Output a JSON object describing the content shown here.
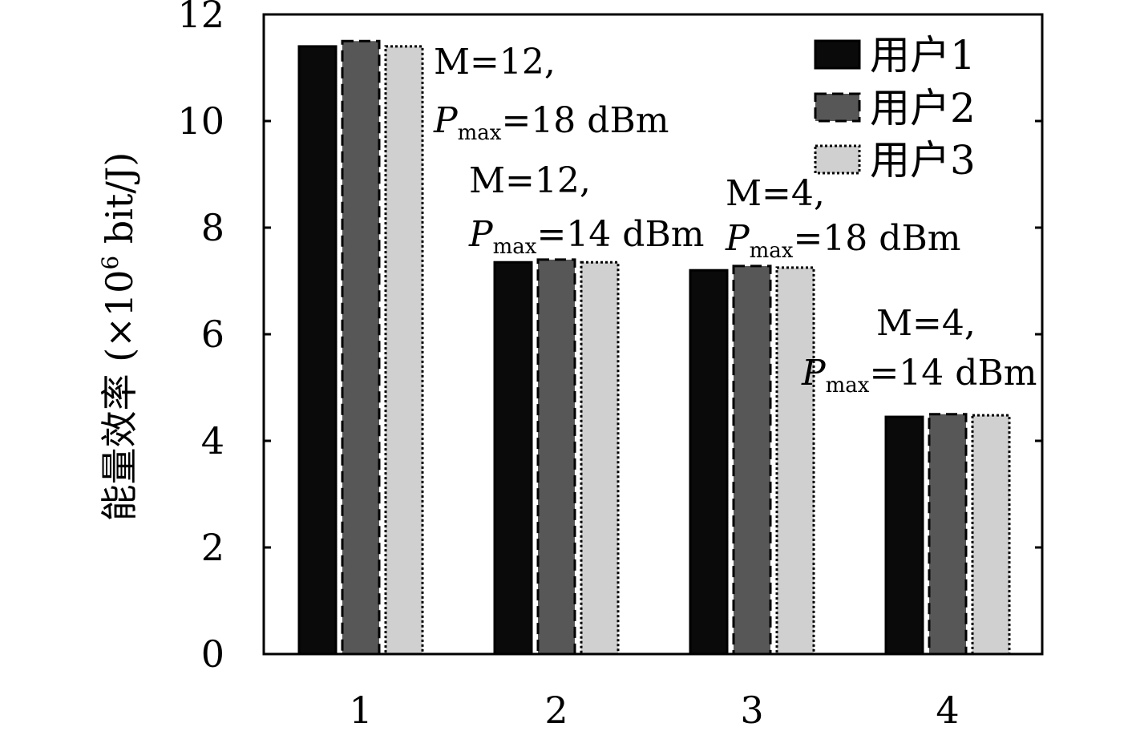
{
  "chart_data": {
    "type": "bar",
    "categories": [
      "1",
      "2",
      "3",
      "4"
    ],
    "series": [
      {
        "name": "用户1",
        "values": [
          11.4,
          7.35,
          7.2,
          4.45
        ],
        "color": "#0a0a0a",
        "border": "solid"
      },
      {
        "name": "用户2",
        "values": [
          11.5,
          7.4,
          7.28,
          4.5
        ],
        "color": "#575757",
        "border": "dashed"
      },
      {
        "name": "用户3",
        "values": [
          11.4,
          7.35,
          7.25,
          4.48
        ],
        "color": "#d0d0d0",
        "border": "dotted"
      }
    ],
    "ylabel": "能量效率 (×10⁶ bit/J)",
    "ylabel_main": "能量效率 (×10",
    "ylabel_sup": "6",
    "ylabel_rest": " bit/J)",
    "ylim": [
      0,
      12
    ],
    "yticks": [
      "0",
      "2",
      "4",
      "6",
      "8",
      "10",
      "12"
    ],
    "legend_position": "top-right",
    "annotations": [
      {
        "category": "1",
        "line1": "M=12,",
        "p_label": "P",
        "p_sub": "max",
        "p_value": "=18 dBm"
      },
      {
        "category": "2",
        "line1": "M=12,",
        "p_label": "P",
        "p_sub": "max",
        "p_value": "=14 dBm"
      },
      {
        "category": "3",
        "line1": "M=4,",
        "p_label": "P",
        "p_sub": "max",
        "p_value": "=18 dBm"
      },
      {
        "category": "4",
        "line1": "M=4,",
        "p_label": "P",
        "p_sub": "max",
        "p_value": "=14 dBm"
      }
    ]
  }
}
